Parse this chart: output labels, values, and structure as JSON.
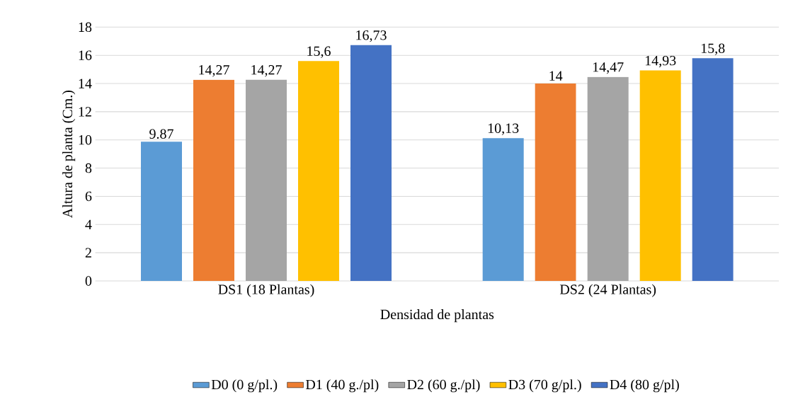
{
  "chart_data": {
    "type": "bar",
    "xlabel": "Densidad de plantas",
    "ylabel": "Altura de planta (Cm.)",
    "categories": [
      "DS1 (18 Plantas)",
      "DS2 (24 Plantas)"
    ],
    "series": [
      {
        "name": "D0 (0 g/pl.)",
        "color": "#5b9bd5",
        "values": [
          9.87,
          10.13
        ],
        "value_labels": [
          "9.87",
          "10,13"
        ]
      },
      {
        "name": "D1 (40 g./pl)",
        "color": "#ed7d31",
        "values": [
          14.27,
          14
        ],
        "value_labels": [
          "14,27",
          "14"
        ]
      },
      {
        "name": "D2 (60 g./pl)",
        "color": "#a5a5a5",
        "values": [
          14.27,
          14.47
        ],
        "value_labels": [
          "14,27",
          "14,47"
        ]
      },
      {
        "name": "D3 (70 g/pl.)",
        "color": "#ffc000",
        "values": [
          15.6,
          14.93
        ],
        "value_labels": [
          "15,6",
          "14,93"
        ]
      },
      {
        "name": "D4 (80 g/pl)",
        "color": "#4472c4",
        "values": [
          16.73,
          15.8
        ],
        "value_labels": [
          "16,73",
          "15,8"
        ]
      }
    ],
    "ylim": [
      0,
      18
    ],
    "yticks": [
      0,
      2,
      4,
      6,
      8,
      10,
      12,
      14,
      16,
      18
    ],
    "grid": "y",
    "legend": "bottom"
  }
}
